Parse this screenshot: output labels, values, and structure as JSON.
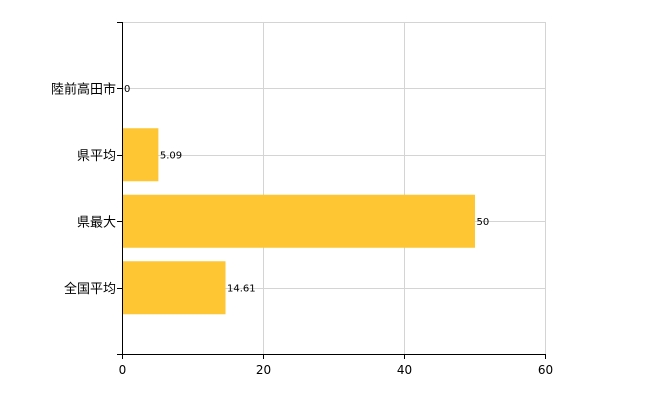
{
  "chart_data": {
    "type": "bar",
    "orientation": "horizontal",
    "categories": [
      "陸前高田市",
      "県平均",
      "県最大",
      "全国平均"
    ],
    "values": [
      0,
      5.09,
      50,
      14.61
    ],
    "value_labels": [
      "0",
      "5.09",
      "50",
      "14.61"
    ],
    "xlim": [
      0,
      60
    ],
    "x_ticks": [
      0,
      20,
      40,
      60
    ],
    "x_tick_labels": [
      "0",
      "20",
      "40",
      "60"
    ],
    "grid": true,
    "bar_color": "#FFC634",
    "grid_color": "#D4D4D4",
    "axis_color": "#000000"
  }
}
